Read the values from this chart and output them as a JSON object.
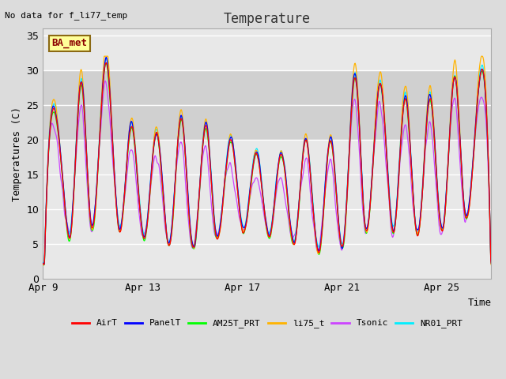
{
  "title": "Temperature",
  "xlabel": "Time",
  "ylabel": "Temperatures (C)",
  "note": "No data for f_li77_temp",
  "ba_met_label": "BA_met",
  "ylim": [
    0,
    36
  ],
  "yticks": [
    0,
    5,
    10,
    15,
    20,
    25,
    30,
    35
  ],
  "x_tick_labels": [
    "Apr 9",
    "Apr 13",
    "Apr 17",
    "Apr 21",
    "Apr 25"
  ],
  "x_tick_positions": [
    0,
    4,
    8,
    12,
    16
  ],
  "xlim": [
    0,
    18
  ],
  "series": {
    "AirT": {
      "color": "#FF0000"
    },
    "PanelT": {
      "color": "#0000FF"
    },
    "AM25T_PRT": {
      "color": "#00FF00"
    },
    "li75_t": {
      "color": "#FFB300"
    },
    "Tsonic": {
      "color": "#CC44FF"
    },
    "NR01_PRT": {
      "color": "#00EEFF"
    }
  },
  "background_color": "#DCDCDC",
  "plot_bg_color": "#E8E8E8",
  "grid_color": "#FFFFFF",
  "shade_band": [
    20,
    30
  ],
  "shade_color": "#D0D0D0"
}
